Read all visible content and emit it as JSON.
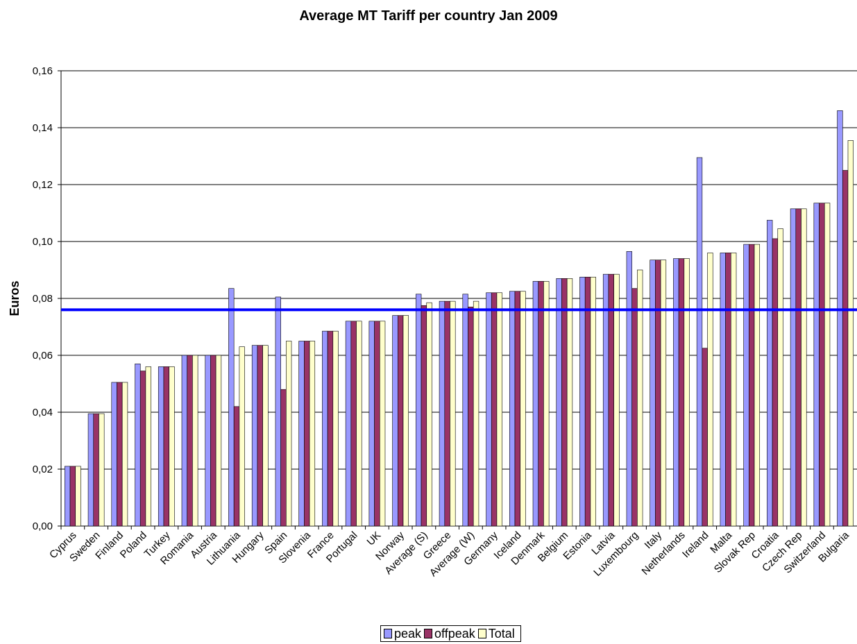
{
  "chart_data": {
    "type": "bar",
    "title": "Average MT Tariff per country Jan 2009",
    "xlabel": "",
    "ylabel": "Euros",
    "ylim": [
      0,
      0.16
    ],
    "yticks": [
      "0,00",
      "0,02",
      "0,04",
      "0,06",
      "0,08",
      "0,10",
      "0,12",
      "0,14",
      "0,16"
    ],
    "grid": true,
    "legend_position": "bottom",
    "reference_line": {
      "value": 0.076,
      "color": "#0000ff"
    },
    "categories": [
      "Cyprus",
      "Sweden",
      "Finland",
      "Poland",
      "Turkey",
      "Romania",
      "Austria",
      "Lithuania",
      "Hungary",
      "Spain",
      "Slovenia",
      "France",
      "Portugal",
      "UK",
      "Norway",
      "Average (S)",
      "Greece",
      "Average (W)",
      "Germany",
      "Iceland",
      "Denmark",
      "Belgium",
      "Estonia",
      "Latvia",
      "Luxembourg",
      "Italy",
      "Netherlands",
      "Ireland",
      "Malta",
      "Slovak Rep",
      "Croatia",
      "Czech Rep",
      "Switzerland",
      "Bulgaria"
    ],
    "series": [
      {
        "name": "peak",
        "color": "#9999ff",
        "values": [
          0.021,
          0.0395,
          0.0505,
          0.057,
          0.056,
          0.06,
          0.06,
          0.0835,
          0.0635,
          0.0805,
          0.065,
          0.0685,
          0.072,
          0.072,
          0.074,
          0.0815,
          0.079,
          0.0815,
          0.082,
          0.0825,
          0.086,
          0.087,
          0.0875,
          0.0885,
          0.0965,
          0.0935,
          0.094,
          0.1295,
          0.096,
          0.099,
          0.1075,
          0.1115,
          0.1135,
          0.146
        ]
      },
      {
        "name": "offpeak",
        "color": "#993366",
        "values": [
          0.021,
          0.0395,
          0.0505,
          0.0545,
          0.056,
          0.06,
          0.06,
          0.042,
          0.0635,
          0.048,
          0.065,
          0.0685,
          0.072,
          0.072,
          0.074,
          0.0775,
          0.079,
          0.077,
          0.082,
          0.0825,
          0.086,
          0.087,
          0.0875,
          0.0885,
          0.0835,
          0.0935,
          0.094,
          0.0625,
          0.096,
          0.099,
          0.101,
          0.1115,
          0.1135,
          0.125
        ]
      },
      {
        "name": "Total",
        "color": "#ffffcc",
        "values": [
          0.021,
          0.0395,
          0.0505,
          0.056,
          0.056,
          0.06,
          0.06,
          0.063,
          0.0635,
          0.065,
          0.065,
          0.0685,
          0.072,
          0.072,
          0.074,
          0.0785,
          0.079,
          0.079,
          0.082,
          0.0825,
          0.086,
          0.087,
          0.0875,
          0.0885,
          0.09,
          0.0935,
          0.094,
          0.096,
          0.096,
          0.099,
          0.1045,
          0.1115,
          0.1135,
          0.1355
        ]
      }
    ]
  }
}
